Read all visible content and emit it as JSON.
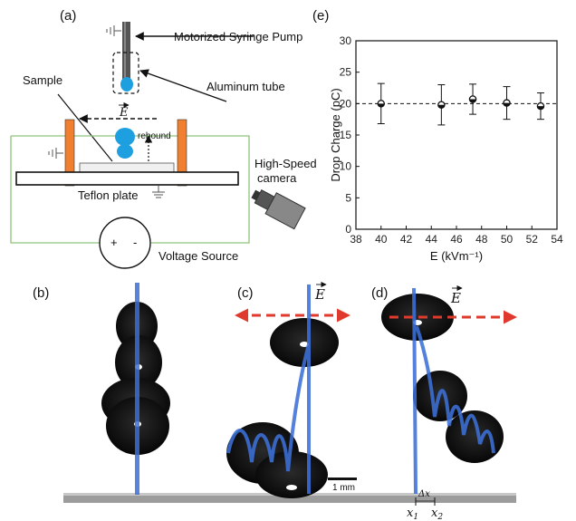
{
  "panels": {
    "a": "(a)",
    "b": "(b)",
    "c": "(c)",
    "d": "(d)",
    "e": "(e)"
  },
  "setup": {
    "syringe": "Motorized Syringe Pump",
    "tube": "Aluminum tube",
    "sample": "Sample",
    "rebound": "rebound",
    "camera": "High-Speed\ncamera",
    "camera_l1": "High-Speed",
    "camera_l2": "camera",
    "teflon": "Teflon plate",
    "voltage": "Voltage Source",
    "plus": "+",
    "minus": "-",
    "field": "E"
  },
  "photos": {
    "field_c": "E",
    "field_d": "E",
    "scale": "1 mm",
    "dx": "Δx",
    "x1": "x",
    "x1_sub": "1",
    "x2": "x",
    "x2_sub": "2"
  },
  "colors": {
    "electrode": "#f0802f",
    "droplet": "#1e9fe0",
    "trajectory": "#3b6fd6",
    "field_arrow": "#e03a2e",
    "circuit": "#8dc47a"
  },
  "chart_data": {
    "type": "scatter",
    "title": "",
    "xlabel": "E (kVm⁻¹)",
    "ylabel": "Drop Charge (pC)",
    "xlim": [
      38,
      54
    ],
    "ylim": [
      0,
      30
    ],
    "xticks": [
      38,
      40,
      42,
      44,
      46,
      48,
      50,
      52,
      54
    ],
    "yticks": [
      0,
      5,
      10,
      15,
      20,
      25,
      30
    ],
    "x": [
      40,
      44.8,
      47.3,
      50,
      52.7
    ],
    "y": [
      20,
      19.8,
      20.7,
      20.1,
      19.6
    ],
    "yerr": [
      3.2,
      3.2,
      2.4,
      2.6,
      2.1
    ],
    "reference_line_y": 20,
    "grid": false
  }
}
